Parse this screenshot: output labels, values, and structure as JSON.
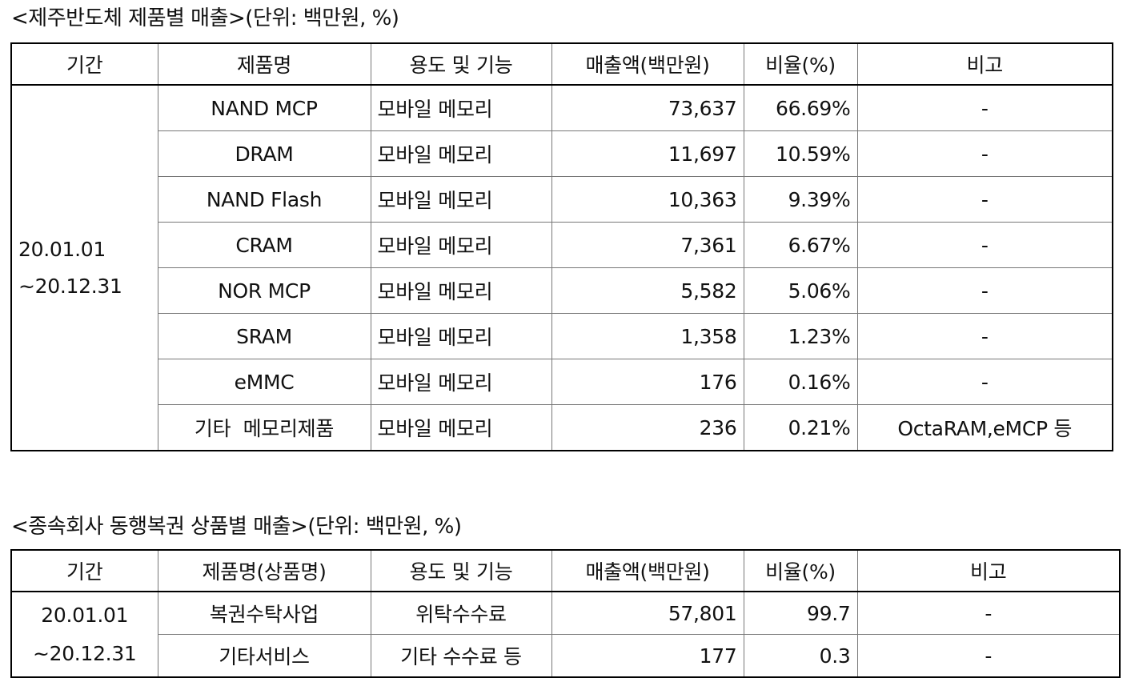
{
  "table1": {
    "caption": "<제주반도체 제품별 매출>(단위: 백만원, %)",
    "headers": [
      "기간",
      "제품명",
      "용도 및 기능",
      "매출액(백만원)",
      "비율(%)",
      "비고"
    ],
    "period_line1": "20.01.01",
    "period_line2": "~20.12.31",
    "rows": [
      {
        "product": "NAND MCP",
        "use": "모바일 메모리",
        "sales": "73,637",
        "ratio": "66.69%",
        "note": "-"
      },
      {
        "product": "DRAM",
        "use": "모바일 메모리",
        "sales": "11,697",
        "ratio": "10.59%",
        "note": "-"
      },
      {
        "product": "NAND Flash",
        "use": "모바일 메모리",
        "sales": "10,363",
        "ratio": "9.39%",
        "note": "-"
      },
      {
        "product": "CRAM",
        "use": "모바일 메모리",
        "sales": "7,361",
        "ratio": "6.67%",
        "note": "-"
      },
      {
        "product": "NOR MCP",
        "use": "모바일 메모리",
        "sales": "5,582",
        "ratio": "5.06%",
        "note": "-"
      },
      {
        "product": "SRAM",
        "use": "모바일 메모리",
        "sales": "1,358",
        "ratio": "1.23%",
        "note": "-"
      },
      {
        "product": "eMMC",
        "use": "모바일 메모리",
        "sales": "176",
        "ratio": "0.16%",
        "note": "-"
      },
      {
        "product": "기타  메모리제품",
        "use": "모바일 메모리",
        "sales": "236",
        "ratio": "0.21%",
        "note": "OctaRAM,eMCP 등"
      }
    ]
  },
  "table2": {
    "caption": "<종속회사 동행복권 상품별 매출>(단위: 백만원, %)",
    "headers": [
      "기간",
      "제품명(상품명)",
      "용도 및 기능",
      "매출액(백만원)",
      "비율(%)",
      "비고"
    ],
    "period_line1": "20.01.01",
    "period_line2": "~20.12.31",
    "rows": [
      {
        "product": "복권수탁사업",
        "use": "위탁수수료",
        "sales": "57,801",
        "ratio": "99.7",
        "note": "-"
      },
      {
        "product": "기타서비스",
        "use": "기타 수수료 등",
        "sales": "177",
        "ratio": "0.3",
        "note": "-"
      }
    ]
  }
}
